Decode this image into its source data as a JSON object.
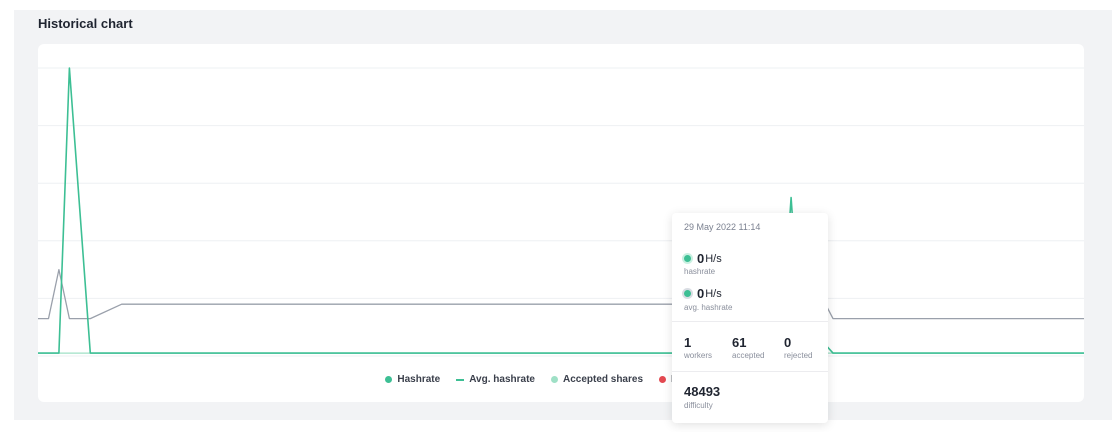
{
  "section_title": "Historical chart",
  "colors": {
    "hashrate": "#3dbf94",
    "avg_hashrate": "#9aa0ab",
    "accepted": "#9fe0c6",
    "rejected": "#e34850"
  },
  "legend": [
    {
      "label": "Hashrate",
      "type": "dot",
      "color": "#3dbf94"
    },
    {
      "label": "Avg. hashrate",
      "type": "dash",
      "color": "#3dbf94"
    },
    {
      "label": "Accepted shares",
      "type": "dot",
      "color": "#9fe0c6"
    },
    {
      "label": "Rejected shar",
      "type": "dot",
      "color": "#e34850"
    }
  ],
  "tooltip": {
    "date": "29 May 2022 11:14",
    "hashrate_value": "0",
    "hashrate_unit": "H/s",
    "hashrate_label": "hashrate",
    "avg_value": "0",
    "avg_unit": "H/s",
    "avg_label": "avg. hashrate",
    "workers_value": "1",
    "workers_label": "workers",
    "accepted_value": "61",
    "accepted_label": "accepted",
    "rejected_value": "0",
    "rejected_label": "rejected",
    "difficulty_value": "48493",
    "difficulty_label": "difficulty"
  },
  "chart_data": {
    "type": "line",
    "title": "",
    "grid": true,
    "ylim": [
      0,
      100
    ],
    "series": [
      {
        "name": "Hashrate",
        "color": "#3dbf94",
        "x": [
          0,
          2,
          3,
          5,
          71,
          72,
          73,
          74,
          75,
          76,
          80,
          100
        ],
        "y": [
          1,
          1,
          100,
          1,
          1,
          55,
          1,
          1,
          5,
          1,
          1,
          1
        ]
      },
      {
        "name": "Avg. hashrate",
        "color": "#9aa0ab",
        "x": [
          0,
          1,
          2,
          3,
          4,
          5,
          8,
          12,
          15,
          19,
          23,
          27,
          38,
          42,
          45,
          49,
          53,
          57,
          61,
          65,
          69,
          72,
          75,
          76,
          80,
          100
        ],
        "y": [
          13,
          13,
          30,
          13,
          13,
          13,
          18,
          18,
          18,
          18,
          18,
          18,
          18,
          18,
          18,
          18,
          18,
          18,
          18,
          18,
          18,
          18,
          20,
          13,
          13,
          13
        ]
      },
      {
        "name": "Accepted shares",
        "color": "#9fe0c6",
        "x": [
          0,
          71,
          72,
          73,
          100
        ],
        "y": [
          1,
          1,
          20,
          1,
          1
        ]
      }
    ]
  }
}
